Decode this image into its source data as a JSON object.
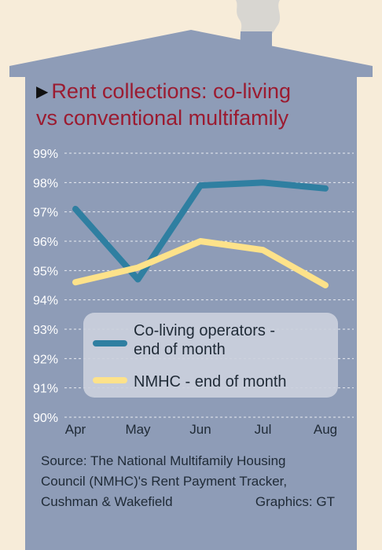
{
  "header": {
    "title_line1": "Rent collections: co-living",
    "title_line2": "vs conventional multifamily"
  },
  "footer": {
    "source_line1": "Source: The National Multifamily Housing",
    "source_line2": "Council (NMHC)'s Rent Payment Tracker,",
    "source_line3": "Cushman & Wakefield",
    "credit": "Graphics: GT"
  },
  "colors": {
    "background": "#f7ecd9",
    "house": "#8e9cb7",
    "chimney": "#e3e1dc",
    "title": "#9b1b30",
    "series_coliving": "#2f7fa1",
    "series_nmhc": "#fde28a",
    "legend_box": "#cbd0dc"
  },
  "chart_data": {
    "type": "line",
    "title": "Rent collections: co-living vs conventional multifamily",
    "categories": [
      "Apr",
      "May",
      "Jun",
      "Jul",
      "Aug"
    ],
    "ylim": [
      90,
      99
    ],
    "yticks": [
      "90%",
      "91%",
      "92%",
      "93%",
      "94%",
      "95%",
      "96%",
      "97%",
      "98%",
      "99%"
    ],
    "grid": true,
    "legend_position": "bottom-right",
    "series": [
      {
        "name": "Co-living operators - end of month",
        "values": [
          97.1,
          94.7,
          97.9,
          98.0,
          97.8
        ]
      },
      {
        "name": "NMHC - end of month",
        "values": [
          94.6,
          95.1,
          96.0,
          95.7,
          94.5
        ]
      }
    ]
  }
}
